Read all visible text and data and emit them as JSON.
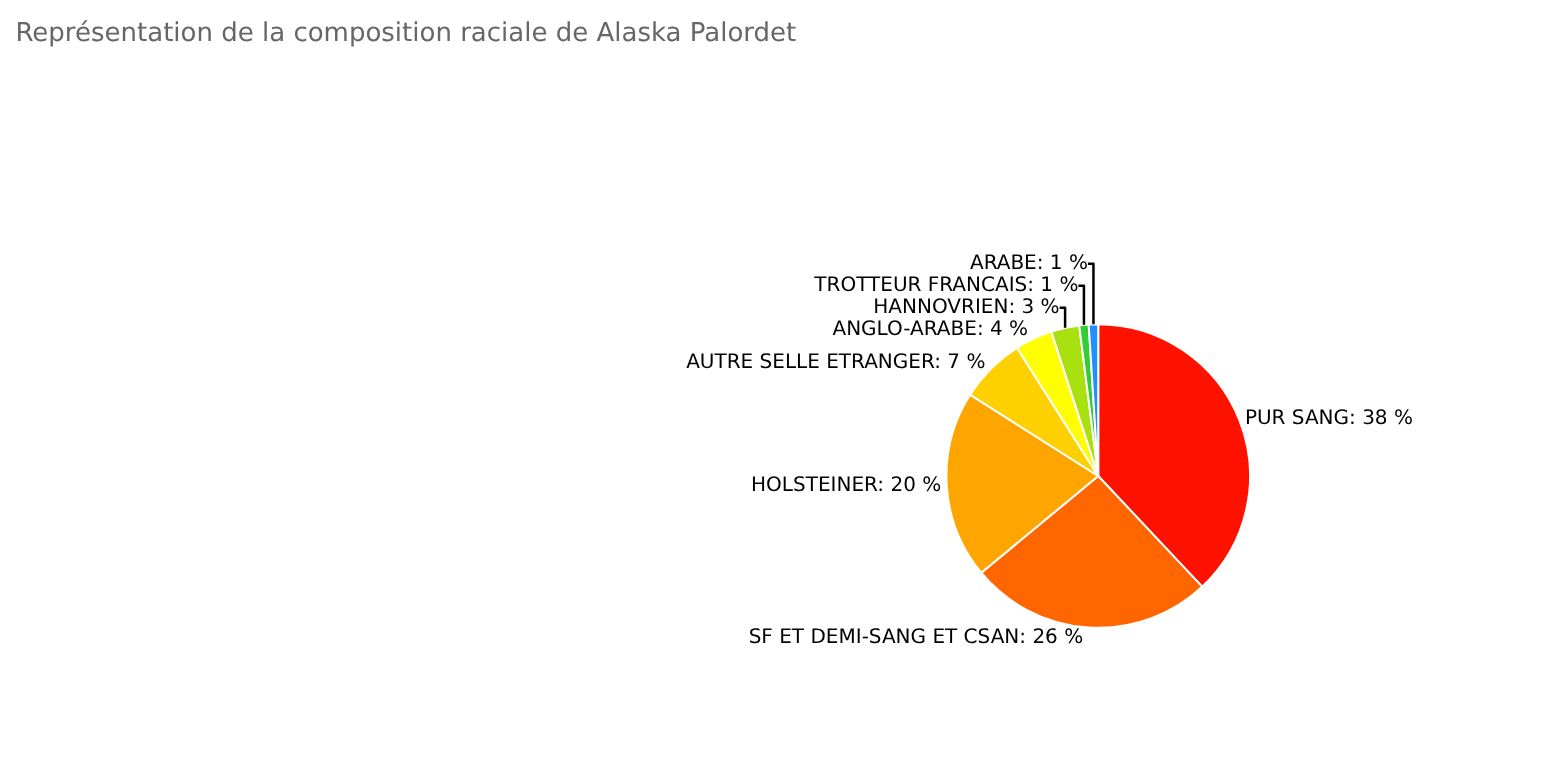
{
  "chart_data": {
    "type": "pie",
    "title": "Représentation de la composition raciale de Alaska Palordet",
    "categories": [
      "PUR SANG",
      "SF ET DEMI-SANG ET CSAN",
      "HOLSTEINER",
      "AUTRE SELLE ETRANGER",
      "ANGLO-ARABE",
      "HANNOVRIEN",
      "TROTTEUR FRANCAIS",
      "ARABE"
    ],
    "values": [
      38,
      26,
      20,
      7,
      4,
      3,
      1,
      1
    ],
    "value_labels": [
      "38 %",
      "26 %",
      "20 %",
      "7 %",
      "4 %",
      "3 %",
      "1 %",
      "1 %"
    ],
    "colors": [
      "#ff1100",
      "#ff6600",
      "#ffa500",
      "#ffd000",
      "#ffff00",
      "#a8e010",
      "#33cc33",
      "#1e90ff"
    ],
    "legend": false
  }
}
